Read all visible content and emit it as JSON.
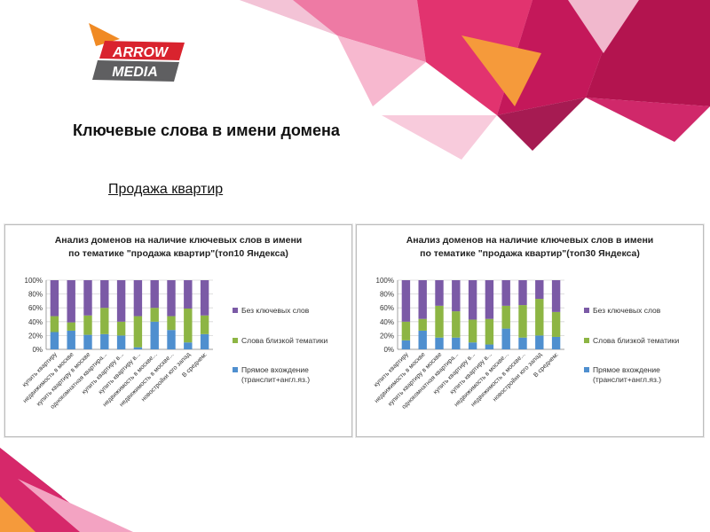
{
  "brand": {
    "logo_line1": "ARROW",
    "logo_line2": "MEDIA",
    "logo_colors": {
      "orange": "#f08a24",
      "red": "#d9232e",
      "gray": "#5f5f61"
    }
  },
  "page": {
    "heading": "Ключевые слова в имени домена",
    "subheading": "Продажа квартир"
  },
  "colors": {
    "series_none": "#7b5aa6",
    "series_close": "#8db544",
    "series_direct": "#4f8fcf"
  },
  "chart_data": [
    {
      "type": "bar",
      "stacked": true,
      "title": "Анализ доменов на наличие ключевых слов в имени",
      "subtitle": "по тематике \"продажа квартир\"(топ10 Яндекса)",
      "categories": [
        "купить квартиру",
        "недвижимость в москве",
        "купить квартиру в москве",
        "однокомнатная квартира...",
        "купить квартиру в...",
        "купить квартиру в...",
        "недвижимость в москве...",
        "недвижимость в москве...",
        "новостройки юго запад",
        "В среднем:"
      ],
      "ylim": [
        0,
        100
      ],
      "yticks": [
        "0%",
        "20%",
        "40%",
        "60%",
        "80%",
        "100%"
      ],
      "legend_position": "right",
      "series": [
        {
          "name": "Прямое вхождение (транслит+англ.яз.)",
          "color_key": "series_direct",
          "values": [
            25,
            27,
            21,
            22,
            20,
            3,
            40,
            28,
            10,
            22
          ]
        },
        {
          "name": "Слова близкой тематики",
          "color_key": "series_close",
          "values": [
            23,
            12,
            28,
            38,
            20,
            45,
            20,
            20,
            49,
            27
          ]
        },
        {
          "name": "Без ключевых слов",
          "color_key": "series_none",
          "values": [
            52,
            61,
            51,
            40,
            60,
            52,
            40,
            52,
            41,
            51
          ]
        }
      ]
    },
    {
      "type": "bar",
      "stacked": true,
      "title": "Анализ доменов на наличие ключевых слов в имени",
      "subtitle": "по тематике \"продажа квартир\"(топ30 Яндекса)",
      "categories": [
        "купить квартиру",
        "недвижимость в москве",
        "купить квартиру в москве",
        "однокомнатная квартира...",
        "купить квартиру в...",
        "купить квартиру в...",
        "недвижимость в москве...",
        "недвижимость в москве...",
        "новостройки юго запад",
        "В среднем:"
      ],
      "ylim": [
        0,
        100
      ],
      "yticks": [
        "0%",
        "20%",
        "40%",
        "60%",
        "80%",
        "100%"
      ],
      "legend_position": "right",
      "series": [
        {
          "name": "Прямое вхождение (транслит+англ.яз.)",
          "color_key": "series_direct",
          "values": [
            13,
            27,
            17,
            17,
            10,
            7,
            30,
            17,
            20,
            18
          ]
        },
        {
          "name": "Слова близкой тематики",
          "color_key": "series_close",
          "values": [
            27,
            17,
            46,
            38,
            33,
            37,
            33,
            47,
            53,
            36
          ]
        },
        {
          "name": "Без ключевых слов",
          "color_key": "series_none",
          "values": [
            60,
            56,
            37,
            45,
            57,
            56,
            37,
            36,
            27,
            46
          ]
        }
      ]
    }
  ]
}
